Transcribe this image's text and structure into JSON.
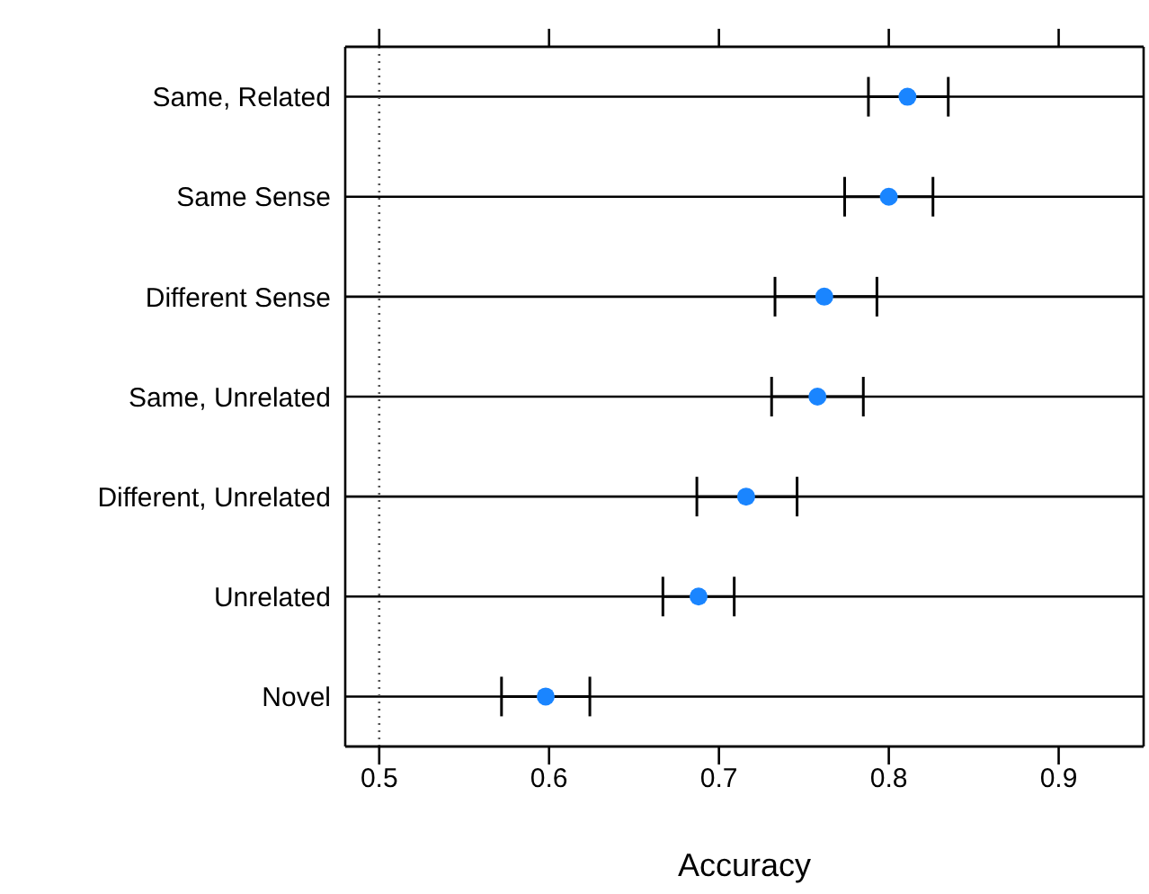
{
  "chart_data": {
    "type": "scatter",
    "orientation": "horizontal",
    "xlabel": "Accuracy",
    "categories": [
      "Same, Related",
      "Same Sense",
      "Different Sense",
      "Same, Unrelated",
      "Different, Unrelated",
      "Unrelated",
      "Novel"
    ],
    "values": [
      0.811,
      0.8,
      0.762,
      0.758,
      0.716,
      0.688,
      0.598
    ],
    "errors": [
      [
        0.788,
        0.835
      ],
      [
        0.774,
        0.826
      ],
      [
        0.733,
        0.793
      ],
      [
        0.731,
        0.785
      ],
      [
        0.687,
        0.746
      ],
      [
        0.667,
        0.709
      ],
      [
        0.572,
        0.624
      ]
    ],
    "color": "#1a85ff",
    "marker": "circle",
    "grid": "y",
    "xlim": [
      0.48,
      0.95
    ],
    "xticks": [
      0.5,
      0.6,
      0.7,
      0.8,
      0.9
    ],
    "ref_lines": [
      {
        "axis": "x",
        "value": 0.5,
        "label": null,
        "color": "#555555",
        "line_style": "dotted"
      }
    ]
  }
}
